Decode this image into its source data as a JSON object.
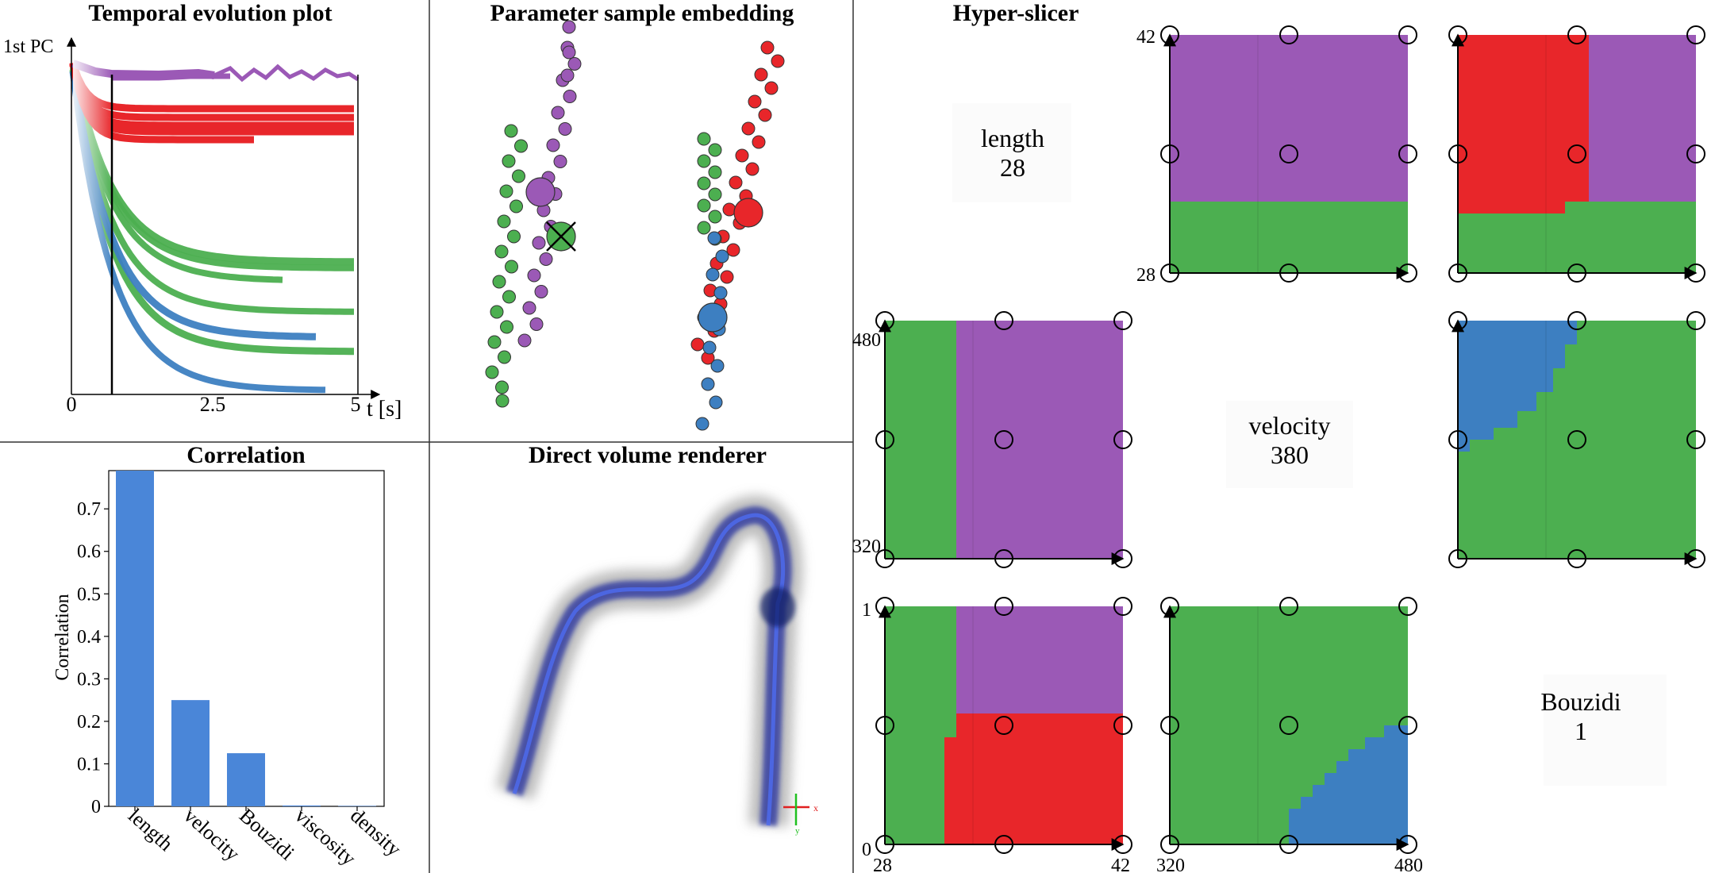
{
  "colors": {
    "purple": "#9b59b6",
    "red": "#e8262a",
    "green": "#4caf50",
    "blue": "#3d7fc1",
    "bar": "#4a86d8"
  },
  "temporal": {
    "title": "Temporal evolution plot",
    "y_label": "1st PC",
    "x_label": "t [s]",
    "x_ticks": [
      "0",
      "2.5",
      "5"
    ]
  },
  "embedding": {
    "title": "Parameter sample embedding"
  },
  "correlation": {
    "title": "Correlation",
    "chart_data": {
      "type": "bar",
      "title": "Correlation",
      "categories": [
        "length",
        "velocity",
        "Bouzidi",
        "viscosity",
        "density"
      ],
      "values": [
        0.79,
        0.25,
        0.125,
        0.002,
        0.001
      ],
      "ylabel": "Correlation",
      "xlabel": "",
      "ylim": [
        0,
        0.79
      ],
      "yticks": [
        "0",
        "0.1",
        "0.2",
        "0.3",
        "0.4",
        "0.5",
        "0.6",
        "0.7"
      ]
    }
  },
  "dvr": {
    "title": "Direct volume renderer",
    "axis_x": "x",
    "axis_y": "y"
  },
  "hyperslicer": {
    "title": "Hyper-slicer",
    "diag": [
      {
        "name": "length",
        "value": "28"
      },
      {
        "name": "velocity",
        "value": "380"
      },
      {
        "name": "Bouzidi",
        "value": "1"
      }
    ],
    "axis_labels": {
      "length_min": "28",
      "length_max": "42",
      "velocity_min": "320",
      "velocity_max": "480",
      "bouzidi_min": "0",
      "bouzidi_max": "1"
    }
  }
}
